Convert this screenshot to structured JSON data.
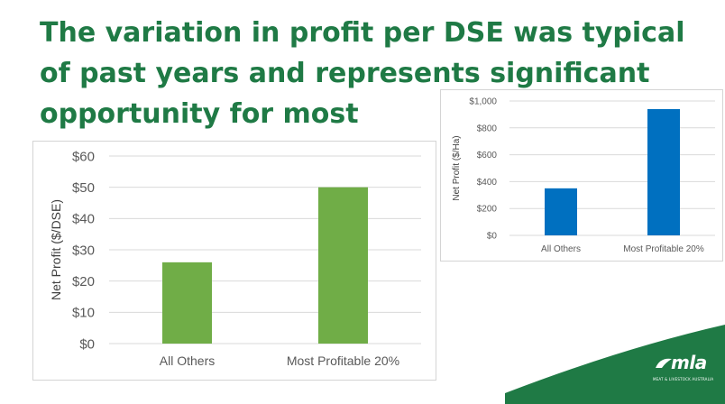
{
  "slide": {
    "title": "The variation in profit per DSE was typical of past years and represents significant opportunity for most"
  },
  "logo": {
    "text": "mla",
    "subtext": "MEAT & LIVESTOCK AUSTRALIA"
  },
  "colors": {
    "title": "#1f7a45",
    "chart1_bar": "#70ad47",
    "chart2_bar": "#0070c0",
    "swoosh": "#1f7a45"
  },
  "chart_data": [
    {
      "type": "bar",
      "categories": [
        "All Others",
        "Most Profitable 20%"
      ],
      "values": [
        26,
        50
      ],
      "title": "",
      "xlabel": "",
      "ylabel": "Net Profit ($/DSE)",
      "ylim": [
        0,
        60
      ],
      "yticks": [
        0,
        10,
        20,
        30,
        40,
        50,
        60
      ],
      "ytick_labels": [
        "$0",
        "$10",
        "$20",
        "$30",
        "$40",
        "$50",
        "$60"
      ],
      "grid": true,
      "legend": "none",
      "color": "#70ad47"
    },
    {
      "type": "bar",
      "categories": [
        "All Others",
        "Most Profitable 20%"
      ],
      "values": [
        350,
        940
      ],
      "title": "",
      "xlabel": "",
      "ylabel": "Net Profit ($/Ha)",
      "ylim": [
        0,
        1000
      ],
      "yticks": [
        0,
        200,
        400,
        600,
        800,
        1000
      ],
      "ytick_labels": [
        "$0",
        "$200",
        "$400",
        "$600",
        "$800",
        "$1,000"
      ],
      "grid": true,
      "legend": "none",
      "color": "#0070c0"
    }
  ]
}
